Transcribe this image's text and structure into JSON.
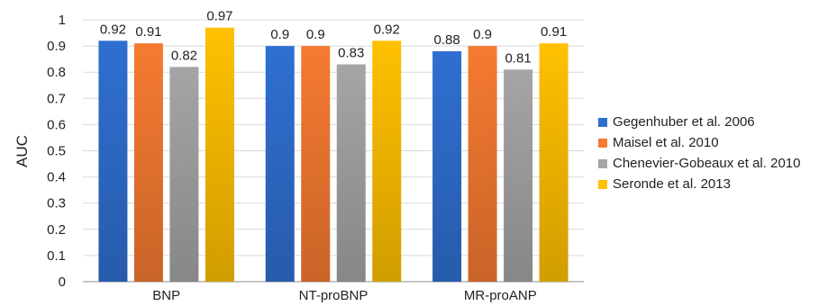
{
  "chart_data": {
    "type": "bar",
    "title": "",
    "xlabel": "",
    "ylabel": "AUC",
    "ylim": [
      0,
      1
    ],
    "yticks": [
      "0",
      "0.1",
      "0.2",
      "0.3",
      "0.4",
      "0.5",
      "0.6",
      "0.7",
      "0.8",
      "0.9",
      "1"
    ],
    "categories": [
      "BNP",
      "NT-proBNP",
      "MR-proANP"
    ],
    "series": [
      {
        "name": "Gegenhuber et al.  2006",
        "color": "#2f6fd1",
        "values": [
          0.92,
          0.9,
          0.88
        ],
        "labels": [
          "0.92",
          "0.9",
          "0.88"
        ]
      },
      {
        "name": "Maisel et al.  2010",
        "color": "#f57a31",
        "values": [
          0.91,
          0.9,
          0.9
        ],
        "labels": [
          "0.91",
          "0.9",
          "0.9"
        ]
      },
      {
        "name": "Chenevier-Gobeaux et al.  2010",
        "color": "#a5a5a5",
        "values": [
          0.82,
          0.83,
          0.81
        ],
        "labels": [
          "0.82",
          "0.83",
          "0.81"
        ]
      },
      {
        "name": "Seronde et al.  2013",
        "color": "#ffc000",
        "values": [
          0.97,
          0.92,
          0.91
        ],
        "labels": [
          "0.97",
          "0.92",
          "0.91"
        ]
      }
    ],
    "grid": true,
    "legend_position": "right"
  }
}
